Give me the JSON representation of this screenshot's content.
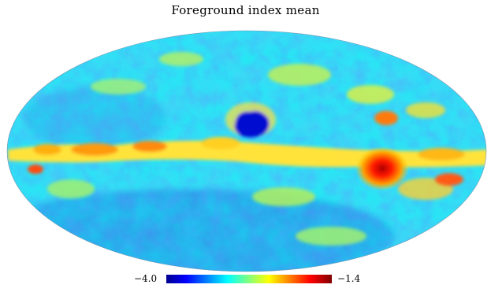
{
  "title": "Foreground index mean",
  "projection": "mollweide",
  "colormap": "jet",
  "colorbar": {
    "min_label": "−4.0",
    "max_label": "−1.4",
    "min": -4.0,
    "max": -1.4
  },
  "colors": {
    "low": "#00008f",
    "blue": "#0000ff",
    "cyan": "#00ffff",
    "yellow": "#ffff00",
    "red": "#ff0000",
    "high": "#800000"
  }
}
